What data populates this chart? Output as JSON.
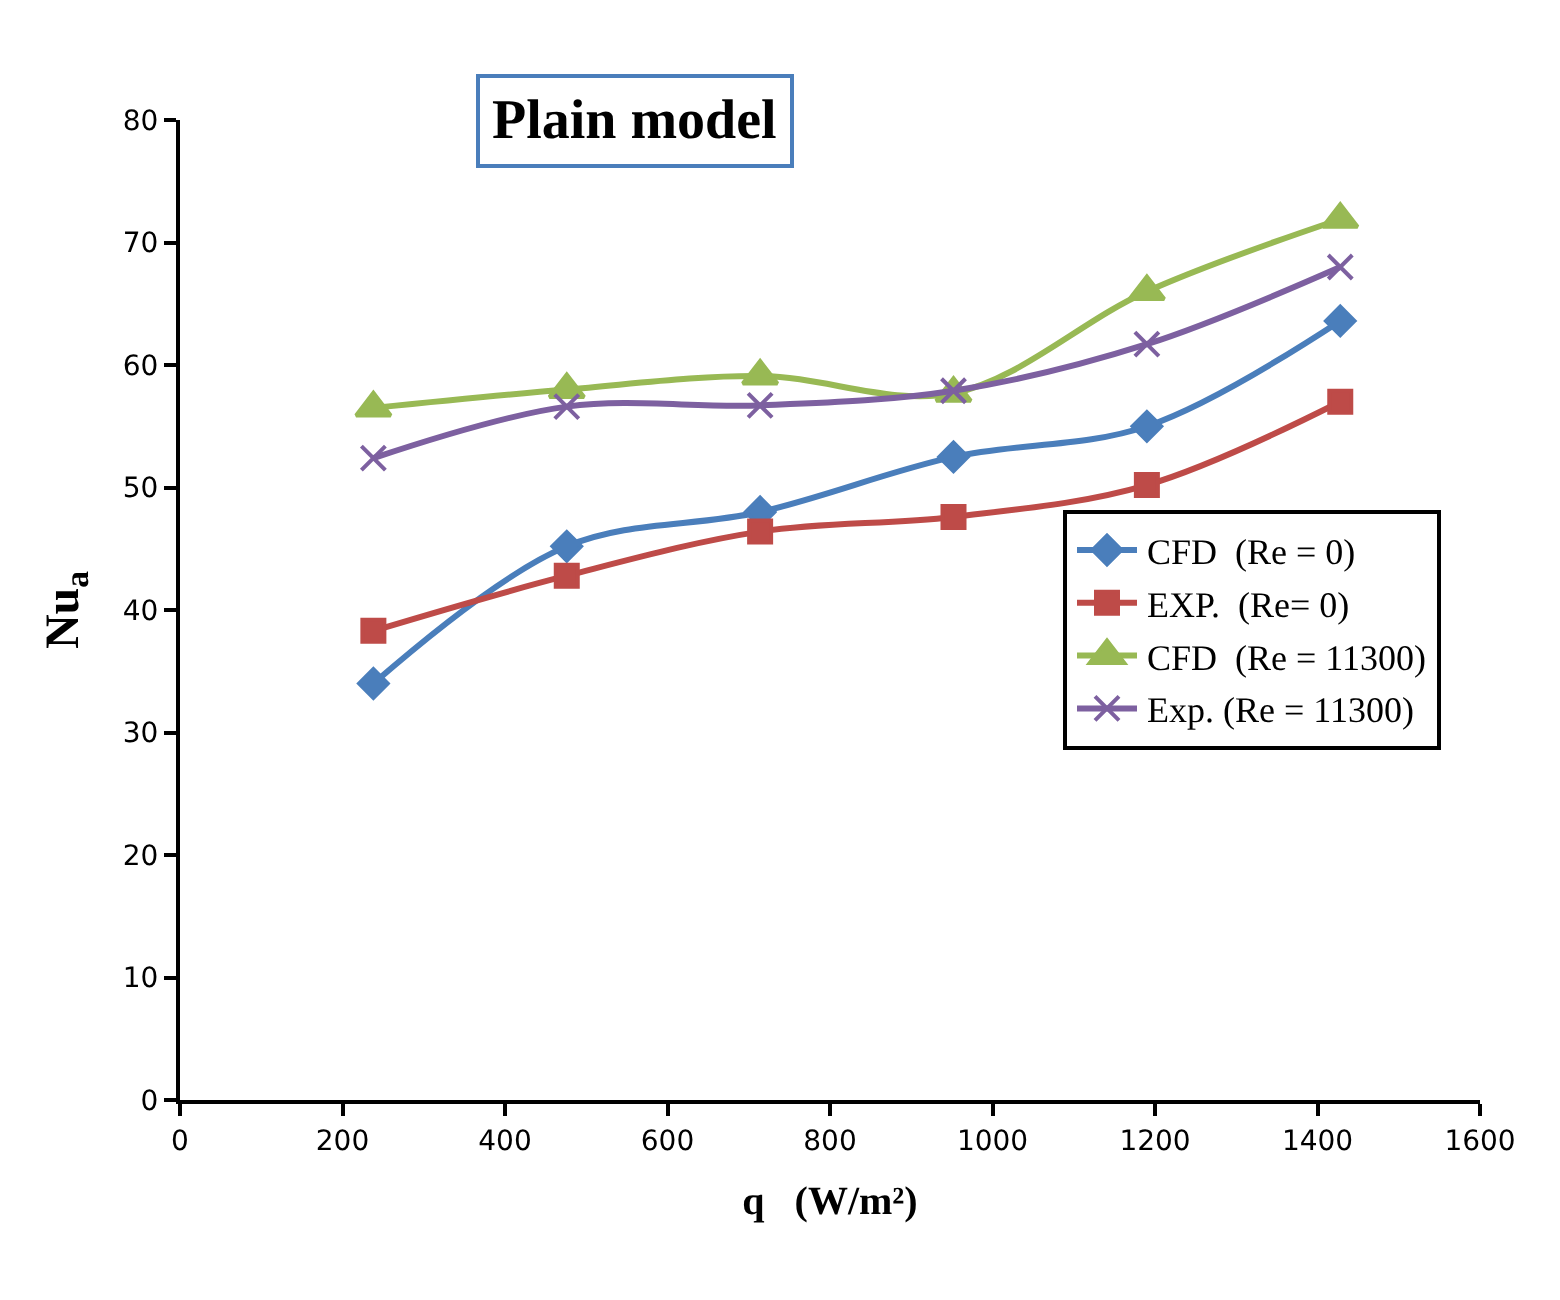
{
  "chart_data": {
    "type": "line",
    "title": "Plain model",
    "xlabel": "q   (W/m²)",
    "ylabel": "Nu$_{a}$",
    "x": [
      238,
      476,
      714,
      952,
      1190,
      1428
    ],
    "xlim": [
      0,
      1600
    ],
    "xticks": [
      0,
      200,
      400,
      600,
      800,
      1000,
      1200,
      1400,
      1600
    ],
    "ylim": [
      0,
      80
    ],
    "yticks": [
      0,
      10,
      20,
      30,
      40,
      50,
      60,
      70,
      80
    ],
    "legend": "right",
    "line_style": "solid",
    "series": [
      {
        "name": "CFD  (Re = 0)",
        "color": "#4a7ebb",
        "marker": "diamond",
        "values": [
          34.0,
          45.2,
          48.0,
          52.5,
          55.0,
          63.6
        ]
      },
      {
        "name": "EXP.  (Re= 0)",
        "color": "#be4b48",
        "marker": "square",
        "values": [
          38.3,
          42.8,
          46.4,
          47.6,
          50.2,
          57.0
        ]
      },
      {
        "name": "CFD  (Re = 11300)",
        "color": "#98b954",
        "marker": "triangle",
        "values": [
          56.5,
          58.0,
          59.1,
          57.7,
          66.0,
          71.9
        ]
      },
      {
        "name": "Exp. (Re = 11300)",
        "color": "#7d60a0",
        "marker": "cross",
        "values": [
          52.4,
          56.6,
          56.7,
          57.9,
          61.7,
          68.0
        ]
      }
    ]
  }
}
